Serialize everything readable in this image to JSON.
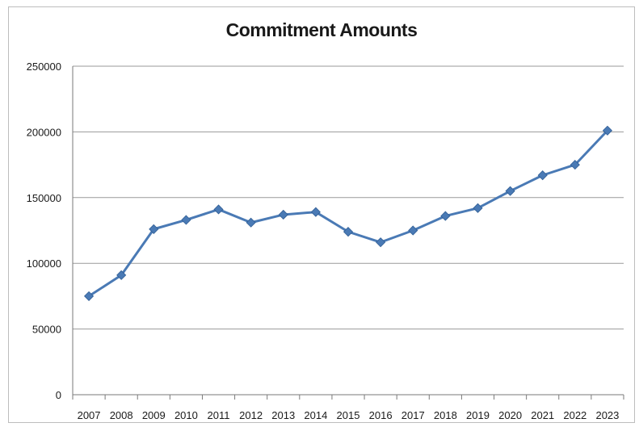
{
  "chart_data": {
    "type": "line",
    "title": "Commitment Amounts",
    "xlabel": "",
    "ylabel": "",
    "categories": [
      "2007",
      "2008",
      "2009",
      "2010",
      "2011",
      "2012",
      "2013",
      "2014",
      "2015",
      "2016",
      "2017",
      "2018",
      "2019",
      "2020",
      "2021",
      "2022",
      "2023"
    ],
    "series": [
      {
        "values": [
          75000,
          91000,
          126000,
          133000,
          141000,
          131000,
          137000,
          139000,
          124000,
          116000,
          125000,
          136000,
          142000,
          155000,
          167000,
          175000,
          201000
        ]
      }
    ],
    "ylim": [
      0,
      250000
    ],
    "yticks": [
      "0",
      "50000",
      "100000",
      "150000",
      "200000",
      "250000"
    ],
    "grid": true,
    "legend": "none",
    "line_color": "#4a7ab5",
    "marker_color": "#4a7ab5",
    "grid_color": "#9a9a9a"
  }
}
